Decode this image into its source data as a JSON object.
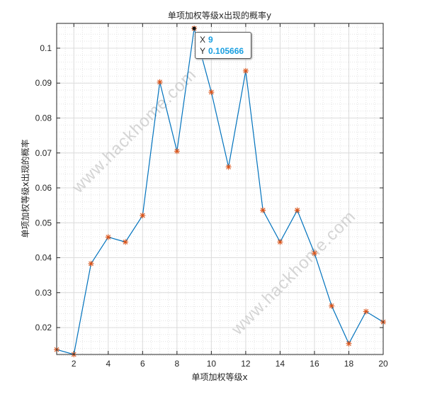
{
  "chart_data": {
    "type": "line",
    "title": "单项加权等级x出现的概率y",
    "xlabel": "单项加权等级x",
    "ylabel": "单项加权等级x出现的概率",
    "x": [
      1,
      2,
      3,
      4,
      5,
      6,
      7,
      8,
      9,
      10,
      11,
      12,
      13,
      14,
      15,
      16,
      17,
      18,
      19,
      20
    ],
    "y": [
      0.0137,
      0.0123,
      0.0383,
      0.0459,
      0.0445,
      0.0521,
      0.0903,
      0.0705,
      0.105666,
      0.0874,
      0.066,
      0.0935,
      0.0536,
      0.0445,
      0.0536,
      0.0413,
      0.0262,
      0.0154,
      0.0246,
      0.0216
    ],
    "xlim": [
      1,
      20
    ],
    "ylim": [
      0.0123,
      0.1071
    ],
    "xticks": [
      2,
      4,
      6,
      8,
      10,
      12,
      14,
      16,
      18,
      20
    ],
    "yticks": [
      0.02,
      0.03,
      0.04,
      0.05,
      0.06,
      0.07,
      0.08,
      0.09,
      0.1
    ],
    "ytick_labels": [
      "0.02",
      "0.03",
      "0.04",
      "0.05",
      "0.06",
      "0.07",
      "0.08",
      "0.09",
      "0.1"
    ],
    "grid": true,
    "minor_grid": true,
    "marker": "*",
    "line_color": "#0072bd",
    "marker_color": "#d95319",
    "datatip": {
      "x_key": "X",
      "x_value": "9",
      "y_key": "Y",
      "y_value": "0.105666"
    }
  },
  "watermark": "www.hackhome.com"
}
